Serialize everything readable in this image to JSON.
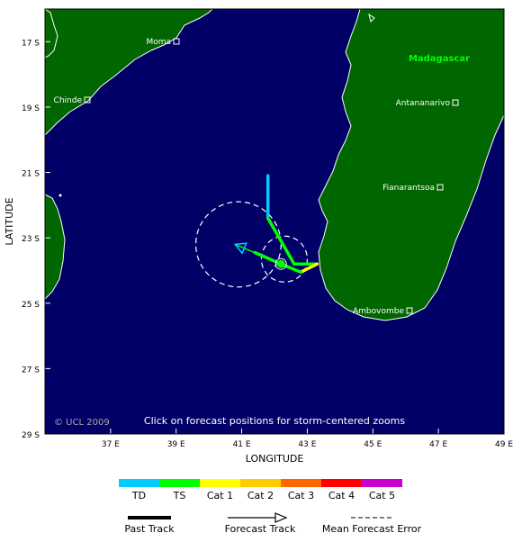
{
  "map": {
    "colors": {
      "ocean": "#000066",
      "land": "#006600",
      "coast": "#ffffff",
      "place_label": "#ffffff",
      "country_label": "#00ff00"
    },
    "y_axis": {
      "title": "LATITUDE",
      "ticks": [
        "17 S",
        "19 S",
        "21 S",
        "23 S",
        "25 S",
        "27 S",
        "29 S"
      ]
    },
    "x_axis": {
      "title": "LONGITUDE",
      "ticks": [
        "37 E",
        "39 E",
        "41 E",
        "43 E",
        "45 E",
        "47 E",
        "49 E"
      ]
    },
    "country": "Madagascar",
    "places": [
      "Moma",
      "Chinde",
      "Antananarivo",
      "Fianarantsoa",
      "Ambovombe"
    ],
    "copyright": "© UCL 2009",
    "hint": "Click on forecast positions for storm-centered zooms"
  },
  "track": {
    "past_segments": [
      {
        "cat": "TD",
        "points": [
          [
            41.8,
            -21.1
          ],
          [
            41.8,
            -22.4
          ]
        ]
      },
      {
        "cat": "TS",
        "points": [
          [
            41.8,
            -22.4
          ],
          [
            42.2,
            -23.1
          ],
          [
            42.6,
            -23.8
          ],
          [
            43.3,
            -23.8
          ]
        ]
      },
      {
        "cat": "Cat 1",
        "points": [
          [
            43.3,
            -23.8
          ],
          [
            42.8,
            -24.05
          ]
        ]
      },
      {
        "cat": "TS",
        "points": [
          [
            42.8,
            -24.05
          ],
          [
            42.2,
            -23.8
          ],
          [
            41.4,
            -23.45
          ]
        ]
      }
    ],
    "forecast": {
      "cat": "TS",
      "points": [
        [
          42.2,
          -23.8
        ],
        [
          40.8,
          -23.2
        ]
      ]
    },
    "error_circles": [
      {
        "center": [
          42.3,
          -23.65
        ],
        "radius_deg": 0.7
      },
      {
        "center": [
          40.9,
          -23.2
        ],
        "radius_deg": 1.3
      }
    ]
  },
  "legend": {
    "categories": [
      {
        "label": "TD",
        "color": "#00ccff"
      },
      {
        "label": "TS",
        "color": "#00ff00"
      },
      {
        "label": "Cat 1",
        "color": "#ffff00"
      },
      {
        "label": "Cat 2",
        "color": "#ffcc00"
      },
      {
        "label": "Cat 3",
        "color": "#ff6600"
      },
      {
        "label": "Cat 4",
        "color": "#ff0000"
      },
      {
        "label": "Cat 5",
        "color": "#cc00cc"
      }
    ],
    "past_track": "Past Track",
    "forecast_track": "Forecast Track",
    "mean_error": "Mean Forecast Error"
  }
}
